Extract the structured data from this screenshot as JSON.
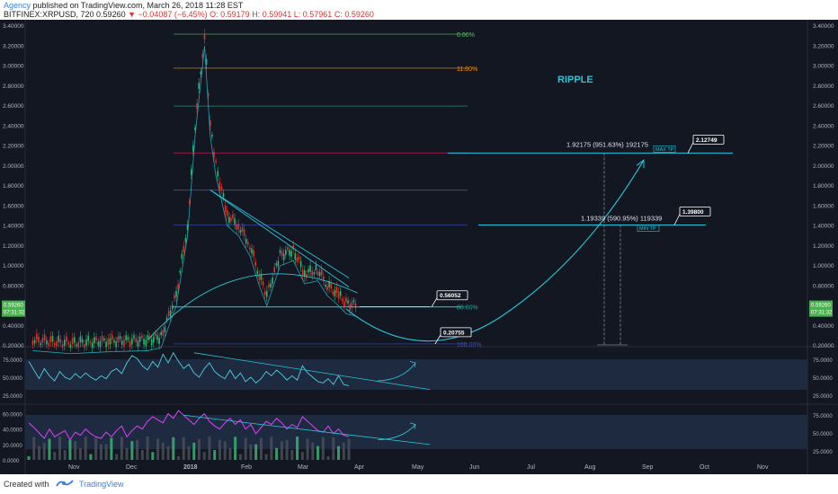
{
  "header": {
    "author": "Agency",
    "published": "published on TradingView.com, March 26, 2018 11:28 EST",
    "symbol": "BITFINEX:XRPUSD, 720",
    "last": "0.59260",
    "change": "−0.04087 (−6.45%)",
    "o": "O: 0.59179",
    "h": "H: 0.59941",
    "l": "L: 0.57961",
    "c": "C: 0.59260"
  },
  "footer": {
    "created_with": "Created with",
    "brand": "TradingView"
  },
  "annotations": {
    "ripple": "RIPPLE",
    "max_tp": "MAX TP",
    "min_tp": "MIN TP",
    "max_measure": "1.92175 (951.63%) 192175",
    "min_measure": "1.19339 (590.95%) 119339",
    "box_max": "2.12749",
    "box_min": "1.39800",
    "box_support": "0.56052",
    "box_low": "0.20755"
  },
  "fib": [
    {
      "label": "0.00%",
      "price": 3.31,
      "color": "#66bb6a"
    },
    {
      "label": "11.00%",
      "price": 2.97,
      "color": "#ff9800"
    },
    {
      "label": "",
      "price": 2.59,
      "color": "#26a69a"
    },
    {
      "label": "",
      "price": 2.12,
      "color": "#e91e63"
    },
    {
      "label": "",
      "price": 1.75,
      "color": "#7e57c2"
    },
    {
      "label": "",
      "price": 1.4,
      "color": "#3f51b5"
    },
    {
      "label": "88.00%",
      "price": 0.58,
      "color": "#26a69a"
    },
    {
      "label": "100.00%",
      "price": 0.21,
      "color": "#3f51b5"
    }
  ],
  "colors": {
    "bg": "#131722",
    "up": "#2bb673",
    "down": "#e0312e",
    "teal": "#26c6da",
    "rsi": "#4dd0e1",
    "stoch": "#e040fb",
    "text_axis": "#b2b5be",
    "price_label": "#4caf50"
  },
  "chart_data": [
    {
      "type": "line",
      "title": "",
      "x_axis_ticks": [
        "Nov",
        "Dec",
        "2018",
        "Feb",
        "Mar",
        "Apr",
        "May",
        "Jun",
        "Jul",
        "Aug",
        "Sep",
        "Oct",
        "Nov"
      ],
      "y_axis_ticks": [
        3.4,
        3.2,
        3.0,
        2.8,
        2.6,
        2.4,
        2.2,
        2.0,
        1.8,
        1.6,
        1.4,
        1.2,
        1.0,
        0.8,
        0.4,
        0.2
      ],
      "ylim": [
        0.2,
        3.4
      ],
      "current_price": "0.59260",
      "countdown": "07:31:32",
      "series": [
        {
          "x": [
            "2017-10-05",
            "2017-10-25",
            "2017-11-15",
            "2017-12-05",
            "2017-12-12",
            "2017-12-20",
            "2017-12-26",
            "2017-12-30",
            "2018-01-04",
            "2018-01-07",
            "2018-01-10",
            "2018-01-16",
            "2018-01-22",
            "2018-01-28",
            "2018-02-02",
            "2018-02-06",
            "2018-02-13",
            "2018-02-20",
            "2018-02-26",
            "2018-03-05",
            "2018-03-10",
            "2018-03-16",
            "2018-03-20",
            "2018-03-26"
          ],
          "values": [
            0.25,
            0.22,
            0.24,
            0.25,
            0.28,
            0.7,
            1.4,
            2.4,
            3.3,
            2.4,
            2.0,
            1.5,
            1.4,
            1.2,
            0.9,
            0.7,
            1.1,
            1.15,
            0.92,
            0.95,
            0.8,
            0.7,
            0.62,
            0.59
          ]
        }
      ]
    },
    {
      "type": "line",
      "title": "",
      "y_axis_ticks": [
        "75.0000",
        "50.0000",
        "25.0000"
      ],
      "ylim": [
        15,
        90
      ],
      "series": [
        {
          "values": [
            72,
            60,
            48,
            62,
            52,
            45,
            58,
            50,
            47,
            55,
            49,
            56,
            50,
            46,
            52,
            48,
            58,
            62,
            55,
            70,
            80,
            76,
            66,
            60,
            72,
            64,
            82,
            70,
            84,
            72,
            62,
            68,
            56,
            50,
            62,
            70,
            58,
            52,
            48,
            60,
            48,
            56,
            44,
            50,
            42,
            48,
            58,
            52,
            60,
            54,
            46,
            52,
            46,
            66,
            56,
            50,
            44,
            42,
            48,
            40,
            52,
            40,
            38
          ]
        }
      ]
    },
    {
      "type": "line",
      "title": "",
      "y_axis_ticks": [
        "60.0000",
        "40.0000",
        "20.0000",
        "0.0000"
      ],
      "y_axis_ticks_right": [
        "75.0000",
        "50.0000",
        "25.0000"
      ],
      "ylim": [
        0,
        70
      ],
      "series": [
        {
          "values": [
            48,
            42,
            35,
            28,
            40,
            30,
            34,
            38,
            26,
            36,
            32,
            40,
            34,
            30,
            28,
            36,
            30,
            38,
            44,
            30,
            38,
            44,
            40,
            50,
            56,
            52,
            48,
            60,
            54,
            64,
            58,
            52,
            46,
            54,
            60,
            50,
            44,
            40,
            48,
            54,
            46,
            52,
            40,
            46,
            34,
            42,
            50,
            46,
            54,
            48,
            40,
            46,
            42,
            56,
            50,
            44,
            38,
            36,
            44,
            34,
            40,
            32,
            30
          ]
        }
      ]
    }
  ]
}
